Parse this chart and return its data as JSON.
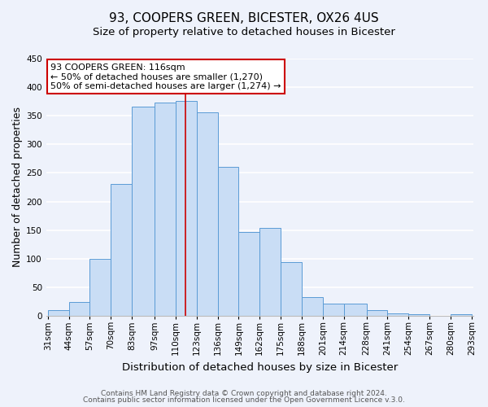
{
  "title": "93, COOPERS GREEN, BICESTER, OX26 4US",
  "subtitle": "Size of property relative to detached houses in Bicester",
  "xlabel": "Distribution of detached houses by size in Bicester",
  "ylabel": "Number of detached properties",
  "bin_labels": [
    "31sqm",
    "44sqm",
    "57sqm",
    "70sqm",
    "83sqm",
    "97sqm",
    "110sqm",
    "123sqm",
    "136sqm",
    "149sqm",
    "162sqm",
    "175sqm",
    "188sqm",
    "201sqm",
    "214sqm",
    "228sqm",
    "241sqm",
    "254sqm",
    "267sqm",
    "280sqm",
    "293sqm"
  ],
  "bar_heights": [
    10,
    25,
    100,
    230,
    365,
    372,
    375,
    355,
    260,
    147,
    154,
    95,
    34,
    22,
    22,
    10,
    5,
    4,
    0,
    3
  ],
  "bin_edges": [
    31,
    44,
    57,
    70,
    83,
    97,
    110,
    123,
    136,
    149,
    162,
    175,
    188,
    201,
    214,
    228,
    241,
    254,
    267,
    280,
    293
  ],
  "bar_color": "#c9ddf5",
  "bar_edge_color": "#5b9bd5",
  "vline_x": 116,
  "vline_color": "#cc0000",
  "annotation_title": "93 COOPERS GREEN: 116sqm",
  "annotation_line1": "← 50% of detached houses are smaller (1,270)",
  "annotation_line2": "50% of semi-detached houses are larger (1,274) →",
  "annotation_box_color": "#ffffff",
  "annotation_box_edge": "#cc0000",
  "ylim": [
    0,
    450
  ],
  "yticks": [
    0,
    50,
    100,
    150,
    200,
    250,
    300,
    350,
    400,
    450
  ],
  "footer1": "Contains HM Land Registry data © Crown copyright and database right 2024.",
  "footer2": "Contains public sector information licensed under the Open Government Licence v.3.0.",
  "bg_color": "#eef2fb",
  "plot_bg_color": "#eef2fb",
  "grid_color": "#ffffff",
  "title_fontsize": 11,
  "subtitle_fontsize": 9.5,
  "axis_label_fontsize": 9,
  "tick_fontsize": 7.5,
  "annotation_fontsize": 8,
  "footer_fontsize": 6.5
}
